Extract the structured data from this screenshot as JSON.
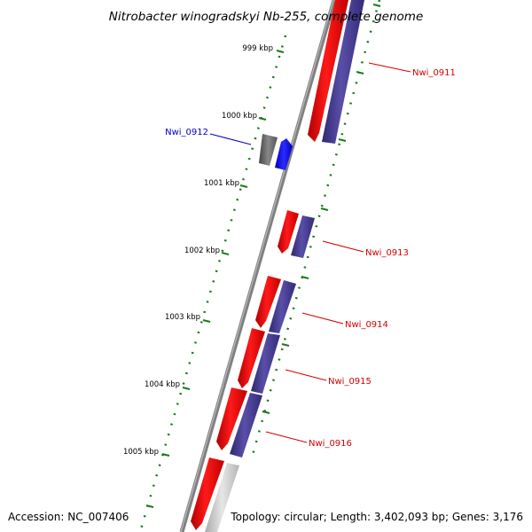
{
  "title": "Nitrobacter winogradskyi Nb-255, complete genome",
  "accession": "Accession: NC_007406",
  "topology": "Topology: circular; Length: 3,402,093 bp; Genes: 3,176",
  "ticks": [
    {
      "label": "999 kbp"
    },
    {
      "label": "1000 kbp"
    },
    {
      "label": "1001 kbp"
    },
    {
      "label": "1002 kbp"
    },
    {
      "label": "1003 kbp"
    },
    {
      "label": "1004 kbp"
    },
    {
      "label": "1005 kbp"
    }
  ],
  "genes": [
    {
      "name": "Nwi_0911",
      "color": "#d40000"
    },
    {
      "name": "Nwi_0912",
      "color": "#0000c8"
    },
    {
      "name": "Nwi_0913",
      "color": "#d40000"
    },
    {
      "name": "Nwi_0914",
      "color": "#d40000"
    },
    {
      "name": "Nwi_0915",
      "color": "#d40000"
    },
    {
      "name": "Nwi_0916",
      "color": "#d40000"
    }
  ],
  "colors": {
    "cds": "#ff0000",
    "gene": "#4b3f8f",
    "other": "#0000ff",
    "dark": "#666666",
    "light": "#c8c8c8",
    "backbone": "#888888",
    "ruler": "#1a7a1a"
  }
}
